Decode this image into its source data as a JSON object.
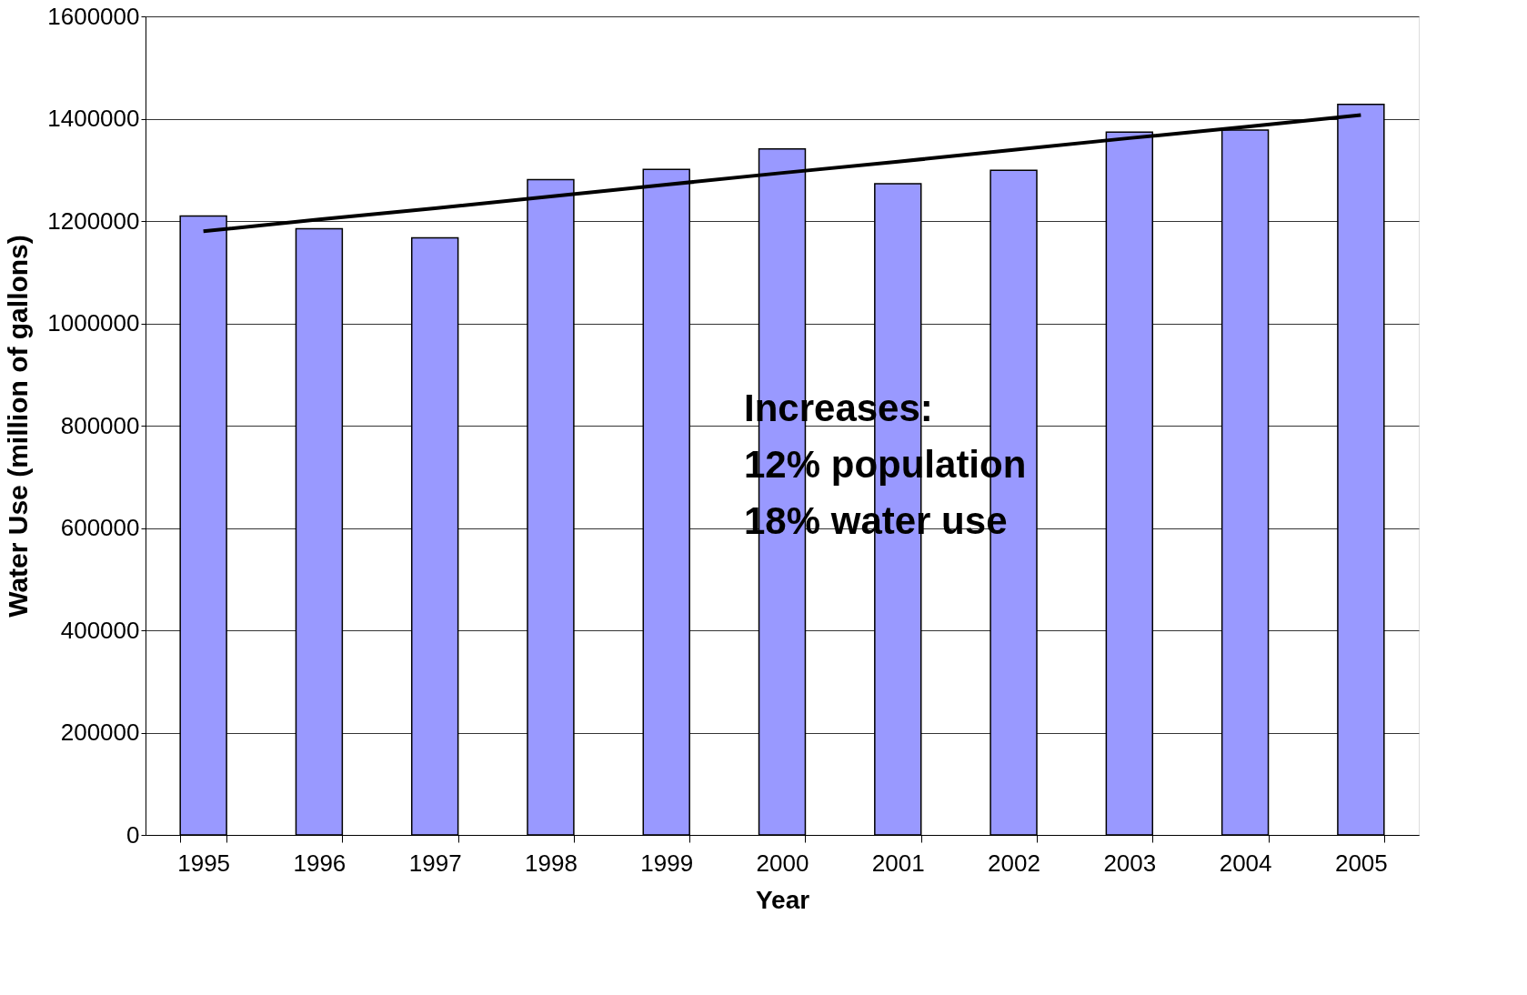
{
  "chart_data": {
    "type": "bar",
    "xlabel": "Year",
    "ylabel": "Water Use (million of gallons)",
    "categories": [
      "1995",
      "1996",
      "1997",
      "1998",
      "1999",
      "2000",
      "2001",
      "2002",
      "2003",
      "2004",
      "2005"
    ],
    "series": [
      {
        "type": "bar",
        "color": "#9999ff",
        "values": [
          1210000,
          1185000,
          1167000,
          1281000,
          1301000,
          1341000,
          1273000,
          1299000,
          1374000,
          1378000,
          1428000
        ]
      },
      {
        "type": "line",
        "color": "#000000",
        "values": [
          1180000,
          1203000,
          1225000,
          1248000,
          1271000,
          1294000,
          1316000,
          1339000,
          1362000,
          1384000,
          1407000
        ]
      }
    ],
    "ylim": [
      0,
      1600000
    ],
    "yticks": [
      0,
      200000,
      400000,
      600000,
      800000,
      1000000,
      1200000,
      1400000,
      1600000
    ],
    "grid": "y",
    "annotations": [
      "Increases:",
      "12% population",
      "18% water use"
    ]
  }
}
